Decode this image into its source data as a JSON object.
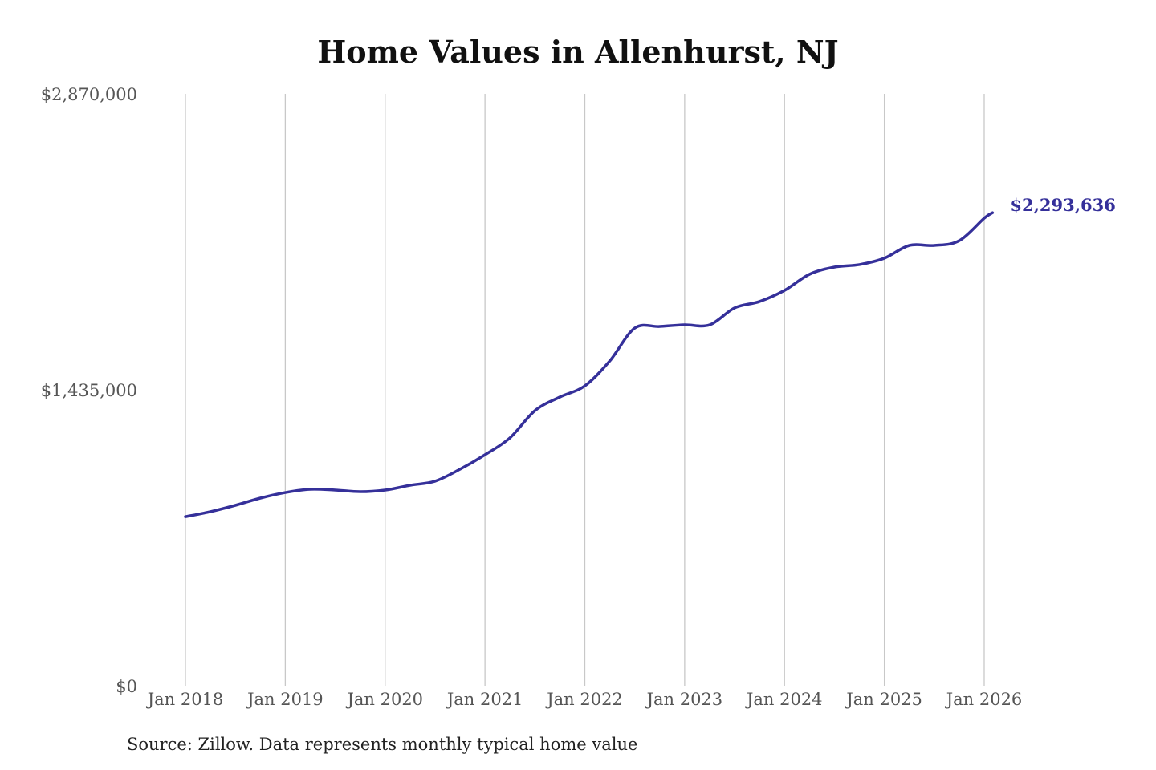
{
  "chart_data": {
    "type": "line",
    "title": "Home Values in Allenhurst, NJ",
    "source": "Source: Zillow. Data represents monthly typical home value",
    "xlabel": "",
    "ylabel": "",
    "ylim": [
      0,
      2870000
    ],
    "y_ticks": [
      {
        "value": 0,
        "label": "$0"
      },
      {
        "value": 1435000,
        "label": "$1,435,000"
      },
      {
        "value": 2870000,
        "label": "$2,870,000"
      }
    ],
    "x_ticks": [
      {
        "value": "2018-01",
        "label": "Jan 2018"
      },
      {
        "value": "2019-01",
        "label": "Jan 2019"
      },
      {
        "value": "2020-01",
        "label": "Jan 2020"
      },
      {
        "value": "2021-01",
        "label": "Jan 2021"
      },
      {
        "value": "2022-01",
        "label": "Jan 2022"
      },
      {
        "value": "2023-01",
        "label": "Jan 2023"
      },
      {
        "value": "2024-01",
        "label": "Jan 2024"
      },
      {
        "value": "2025-01",
        "label": "Jan 2025"
      },
      {
        "value": "2026-01",
        "label": "Jan 2026"
      }
    ],
    "grid": {
      "vertical": true,
      "horizontal": false
    },
    "line_color": "#35309a",
    "end_label": "$2,293,636",
    "series": [
      {
        "x": [
          "2018-01",
          "2018-04",
          "2018-07",
          "2018-10",
          "2019-01",
          "2019-04",
          "2019-07",
          "2019-10",
          "2020-01",
          "2020-04",
          "2020-07",
          "2020-10",
          "2021-01",
          "2021-04",
          "2021-07",
          "2021-10",
          "2022-01",
          "2022-04",
          "2022-07",
          "2022-10",
          "2023-01",
          "2023-04",
          "2023-07",
          "2023-10",
          "2024-01",
          "2024-04",
          "2024-07",
          "2024-10",
          "2025-01",
          "2025-04",
          "2025-07",
          "2025-10",
          "2026-01",
          "2026-02"
        ],
        "y": [
          820000,
          844000,
          875000,
          910000,
          937000,
          953000,
          949000,
          941000,
          949000,
          972000,
          992000,
          1050000,
          1120000,
          1202000,
          1334000,
          1400000,
          1454000,
          1575000,
          1734000,
          1742000,
          1750000,
          1750000,
          1832000,
          1863000,
          1917000,
          1995000,
          2030000,
          2042000,
          2073000,
          2135000,
          2135000,
          2158000,
          2267000,
          2293636
        ]
      }
    ]
  }
}
